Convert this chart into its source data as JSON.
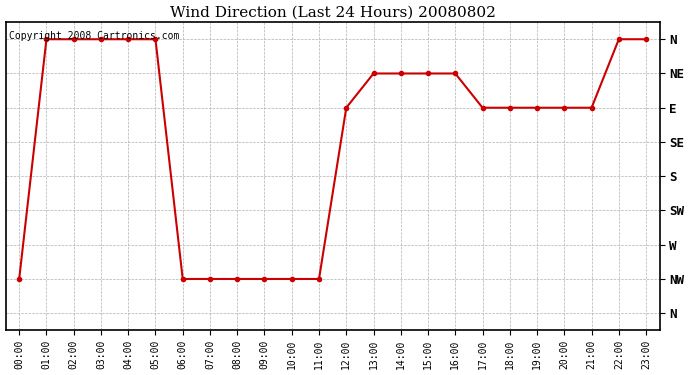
{
  "title": "Wind Direction (Last 24 Hours) 20080802",
  "copyright": "Copyright 2008 Cartronics.com",
  "background_color": "#ffffff",
  "line_color": "#cc0000",
  "grid_color": "#b0b0b0",
  "x_labels": [
    "00:00",
    "01:00",
    "02:00",
    "03:00",
    "04:00",
    "05:00",
    "06:00",
    "07:00",
    "08:00",
    "09:00",
    "10:00",
    "11:00",
    "12:00",
    "13:00",
    "14:00",
    "15:00",
    "16:00",
    "17:00",
    "18:00",
    "19:00",
    "20:00",
    "21:00",
    "22:00",
    "23:00"
  ],
  "y_ticks": [
    0,
    1,
    2,
    3,
    4,
    5,
    6,
    7,
    8
  ],
  "y_labels": [
    "N",
    "NW",
    "W",
    "SW",
    "S",
    "SE",
    "E",
    "NE",
    "N"
  ],
  "data_hours": [
    0,
    1,
    2,
    3,
    4,
    5,
    6,
    7,
    8,
    9,
    10,
    11,
    12,
    13,
    14,
    15,
    16,
    17,
    18,
    19,
    20,
    21,
    22,
    23
  ],
  "data_values": [
    7,
    0,
    0,
    0,
    0,
    0,
    7,
    7,
    7,
    7,
    7,
    7,
    2,
    1,
    1,
    1,
    1,
    2,
    2,
    2,
    2,
    2,
    0,
    0
  ],
  "ylim": [
    -0.5,
    8.5
  ],
  "xlim": [
    -0.5,
    23.5
  ]
}
